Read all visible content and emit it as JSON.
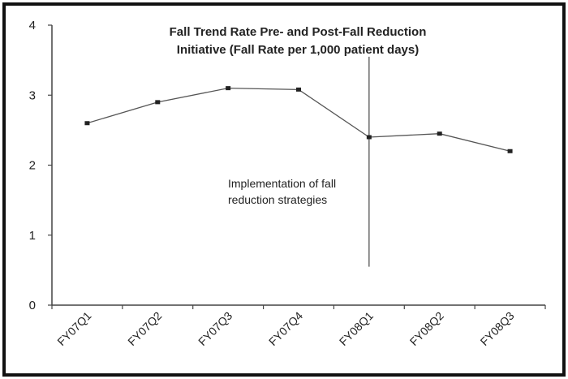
{
  "chart_data": {
    "type": "line",
    "title_lines": [
      "Fall Trend Rate Pre- and Post-Fall Reduction",
      "Initiative (Fall Rate per 1,000 patient days)"
    ],
    "xlabel": "",
    "ylabel": "",
    "categories": [
      "FY07Q1",
      "FY07Q2",
      "FY07Q3",
      "FY07Q4",
      "FY08Q1",
      "FY08Q2",
      "FY08Q3"
    ],
    "series": [
      {
        "values": [
          2.6,
          2.9,
          3.1,
          3.08,
          2.4,
          2.45,
          2.2
        ]
      }
    ],
    "ylim": [
      0,
      4
    ],
    "yticks": [
      "0",
      "1",
      "2",
      "3",
      "4"
    ],
    "grid": false,
    "legend": "none",
    "annotation": {
      "text_lines": [
        "Implementation of fall",
        "reduction strategies"
      ],
      "at_category": "FY08Q1",
      "from_value": 0.55,
      "to_value": 3.55
    },
    "colors": {
      "line": "#555555",
      "marker": "#222222",
      "axis": "#444444",
      "frame": "#111111"
    }
  }
}
